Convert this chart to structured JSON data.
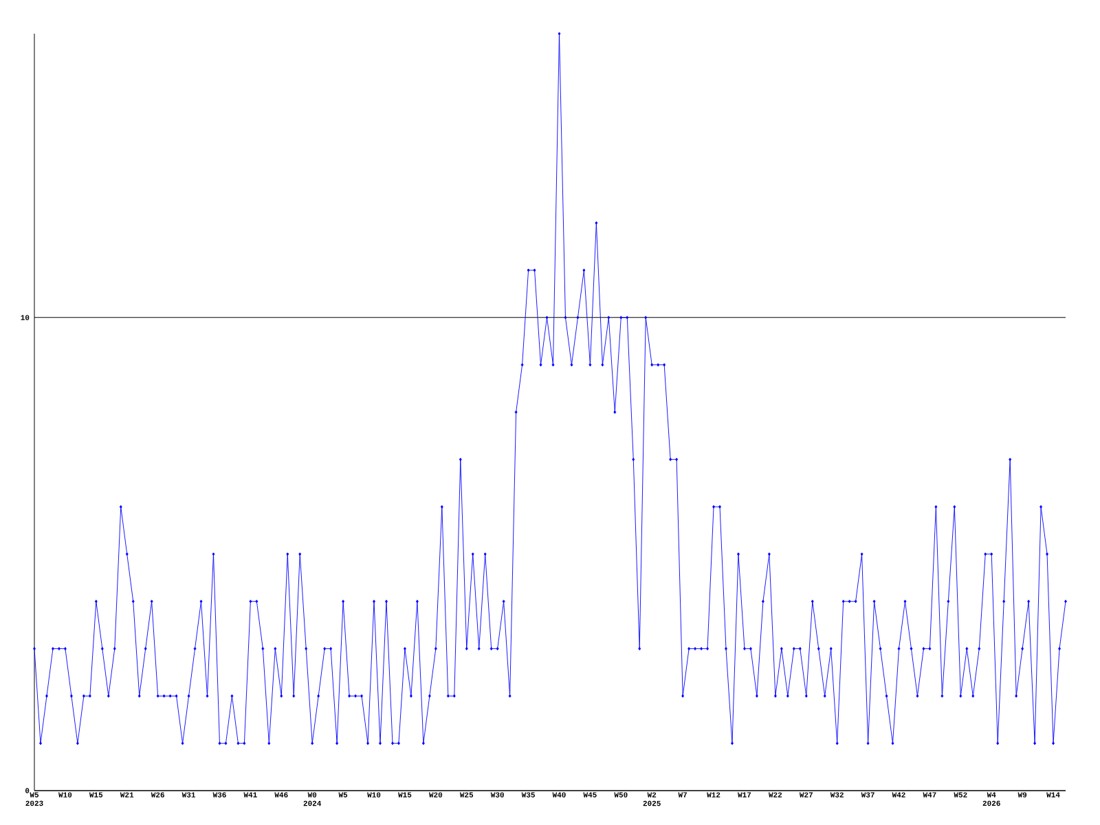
{
  "chart_data": {
    "type": "line",
    "color": "#0000ff",
    "marker": "diamond",
    "grid": "y",
    "ylim": [
      0,
      16
    ],
    "yticks": [
      0,
      10
    ],
    "categories": [
      "W5 2023",
      null,
      null,
      null,
      null,
      "W10",
      null,
      null,
      null,
      null,
      "W15",
      null,
      null,
      null,
      null,
      "W21",
      null,
      null,
      null,
      null,
      "W26",
      null,
      null,
      null,
      null,
      "W31",
      null,
      null,
      null,
      null,
      "W36",
      null,
      null,
      null,
      null,
      "W41",
      null,
      null,
      null,
      null,
      "W46",
      null,
      null,
      null,
      null,
      "W0 2024",
      null,
      null,
      null,
      null,
      "W5",
      null,
      null,
      null,
      null,
      "W10",
      null,
      null,
      null,
      null,
      "W15",
      null,
      null,
      null,
      null,
      "W20",
      null,
      null,
      null,
      null,
      "W25",
      null,
      null,
      null,
      null,
      "W30",
      null,
      null,
      null,
      null,
      "W35",
      null,
      null,
      null,
      null,
      "W40",
      null,
      null,
      null,
      null,
      "W45",
      null,
      null,
      null,
      null,
      "W50",
      null,
      null,
      null,
      null,
      "W2 2025",
      null,
      null,
      null,
      null,
      "W7",
      null,
      null,
      null,
      null,
      "W12",
      null,
      null,
      null,
      null,
      "W17",
      null,
      null,
      null,
      null,
      "W22",
      null,
      null,
      null,
      null,
      "W27",
      null,
      null,
      null,
      null,
      "W32",
      null,
      null,
      null,
      null,
      "W37",
      null,
      null,
      null,
      null,
      "W42",
      null,
      null,
      null,
      null,
      "W47",
      null,
      null,
      null,
      null,
      "W52",
      null,
      null,
      null,
      null,
      "W4 2026",
      null,
      null,
      null,
      null,
      "W9",
      null,
      null,
      null,
      null,
      "W14",
      null,
      null
    ],
    "values": [
      3,
      1,
      2,
      3,
      3,
      3,
      2,
      1,
      2,
      2,
      4,
      3,
      2,
      3,
      6,
      5,
      4,
      2,
      3,
      4,
      2,
      2,
      2,
      2,
      1,
      2,
      3,
      4,
      2,
      5,
      1,
      1,
      2,
      1,
      1,
      4,
      4,
      3,
      1,
      3,
      2,
      5,
      2,
      5,
      3,
      1,
      2,
      3,
      3,
      1,
      4,
      2,
      2,
      2,
      1,
      4,
      1,
      4,
      1,
      1,
      3,
      2,
      4,
      1,
      2,
      3,
      6,
      2,
      2,
      7,
      3,
      5,
      3,
      5,
      3,
      3,
      4,
      2,
      8,
      9,
      11,
      11,
      9,
      10,
      9,
      16,
      10,
      9,
      10,
      11,
      9,
      12,
      9,
      10,
      8,
      10,
      10,
      7,
      3,
      10,
      9,
      9,
      9,
      7,
      7,
      2,
      3,
      3,
      3,
      3,
      6,
      6,
      3,
      1,
      5,
      3,
      3,
      2,
      4,
      5,
      2,
      3,
      2,
      3,
      3,
      2,
      4,
      3,
      2,
      3,
      1,
      4,
      4,
      4,
      5,
      1,
      4,
      3,
      2,
      1,
      3,
      4,
      3,
      2,
      3,
      3,
      6,
      2,
      4,
      6,
      2,
      3,
      2,
      3,
      5,
      5,
      1,
      4,
      7,
      2,
      3,
      4,
      1,
      6,
      5,
      1,
      3,
      4
    ]
  }
}
